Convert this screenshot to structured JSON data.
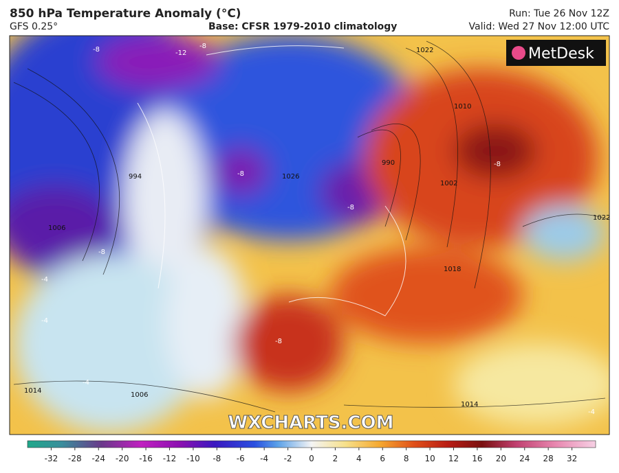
{
  "header": {
    "title": "850 hPa Temperature Anomaly (°C)",
    "model": "GFS 0.25°",
    "base": "Base: CFSR 1979-2010 climatology",
    "run": "Run: Tue 26 Nov 12Z",
    "valid": "Valid: Wed 27 Nov 12:00 UTC"
  },
  "logo": "MetDesk",
  "watermark": "WXCHARTS.COM",
  "map": {
    "labels": [
      "-8",
      "-12",
      "-8",
      "1022",
      "1010",
      "990",
      "994",
      "1026",
      "-8",
      "-8",
      "1002",
      "-8",
      "1006",
      "-8",
      "1022",
      "1018",
      "-4",
      "-4",
      "1014",
      "1006",
      "-8",
      "1014",
      "-4",
      "-4"
    ]
  },
  "colorbar": {
    "ticks": [
      -32,
      -28,
      -24,
      -20,
      -16,
      -12,
      -10,
      -8,
      -6,
      -4,
      -2,
      0,
      2,
      4,
      6,
      8,
      10,
      12,
      16,
      20,
      24,
      28,
      32
    ]
  }
}
